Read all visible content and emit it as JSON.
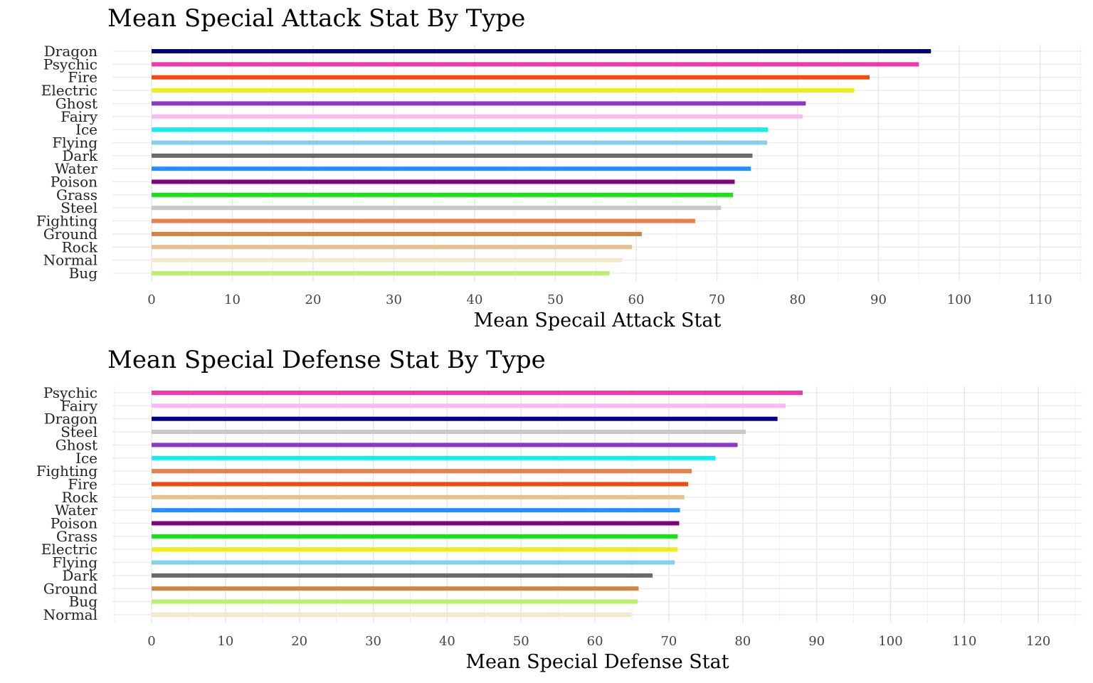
{
  "chart_data": [
    {
      "type": "bar",
      "orientation": "horizontal",
      "title": "Mean Special Attack Stat By Type",
      "xlabel": "Mean Specail Attack Stat",
      "ylabel": "",
      "xlim": [
        -5,
        115
      ],
      "xticks": [
        0,
        10,
        20,
        30,
        40,
        50,
        60,
        70,
        80,
        90,
        100,
        110
      ],
      "grid": true,
      "legend": "none",
      "bars": [
        {
          "label": "Dragon",
          "value": 96.5,
          "color": "#000080"
        },
        {
          "label": "Psychic",
          "value": 95.0,
          "color": "#f535aa"
        },
        {
          "label": "Fire",
          "value": 88.9,
          "color": "#f24a12"
        },
        {
          "label": "Electric",
          "value": 87.0,
          "color": "#eeee10"
        },
        {
          "label": "Ghost",
          "value": 81.0,
          "color": "#9135c8"
        },
        {
          "label": "Fairy",
          "value": 80.6,
          "color": "#fbb9f4"
        },
        {
          "label": "Ice",
          "value": 76.3,
          "color": "#10eeee"
        },
        {
          "label": "Flying",
          "value": 76.2,
          "color": "#87ceeb"
        },
        {
          "label": "Dark",
          "value": 74.4,
          "color": "#696969"
        },
        {
          "label": "Water",
          "value": 74.2,
          "color": "#1e90ff"
        },
        {
          "label": "Poison",
          "value": 72.2,
          "color": "#800080"
        },
        {
          "label": "Grass",
          "value": 72.0,
          "color": "#10e610"
        },
        {
          "label": "Steel",
          "value": 70.5,
          "color": "#c8c8c8"
        },
        {
          "label": "Fighting",
          "value": 67.3,
          "color": "#eb7e4d"
        },
        {
          "label": "Ground",
          "value": 60.7,
          "color": "#cd853f"
        },
        {
          "label": "Rock",
          "value": 59.5,
          "color": "#e6c08e"
        },
        {
          "label": "Normal",
          "value": 58.3,
          "color": "#f2e8cc"
        },
        {
          "label": "Bug",
          "value": 56.7,
          "color": "#bdee6e"
        }
      ]
    },
    {
      "type": "bar",
      "orientation": "horizontal",
      "title": "Mean Special Defense Stat By Type",
      "xlabel": "Mean Special Defense Stat",
      "ylabel": "",
      "xlim": [
        -5,
        125
      ],
      "xticks": [
        0,
        10,
        20,
        30,
        40,
        50,
        60,
        70,
        80,
        90,
        100,
        110,
        120
      ],
      "grid": true,
      "legend": "none",
      "bars": [
        {
          "label": "Psychic",
          "value": 88.1,
          "color": "#f535aa"
        },
        {
          "label": "Fairy",
          "value": 85.8,
          "color": "#fbb9f4"
        },
        {
          "label": "Dragon",
          "value": 84.7,
          "color": "#000080"
        },
        {
          "label": "Steel",
          "value": 80.4,
          "color": "#c8c8c8"
        },
        {
          "label": "Ghost",
          "value": 79.3,
          "color": "#9135c8"
        },
        {
          "label": "Ice",
          "value": 76.3,
          "color": "#10eeee"
        },
        {
          "label": "Fighting",
          "value": 73.1,
          "color": "#eb7e4d"
        },
        {
          "label": "Fire",
          "value": 72.6,
          "color": "#f24a12"
        },
        {
          "label": "Rock",
          "value": 72.1,
          "color": "#e6c08e"
        },
        {
          "label": "Water",
          "value": 71.5,
          "color": "#1e90ff"
        },
        {
          "label": "Poison",
          "value": 71.4,
          "color": "#800080"
        },
        {
          "label": "Grass",
          "value": 71.2,
          "color": "#10e610"
        },
        {
          "label": "Electric",
          "value": 71.2,
          "color": "#eeee10"
        },
        {
          "label": "Flying",
          "value": 70.8,
          "color": "#87ceeb"
        },
        {
          "label": "Dark",
          "value": 67.8,
          "color": "#696969"
        },
        {
          "label": "Ground",
          "value": 65.9,
          "color": "#cd853f"
        },
        {
          "label": "Bug",
          "value": 65.8,
          "color": "#bdee6e"
        },
        {
          "label": "Normal",
          "value": 64.9,
          "color": "#f2e8cc"
        }
      ]
    }
  ]
}
